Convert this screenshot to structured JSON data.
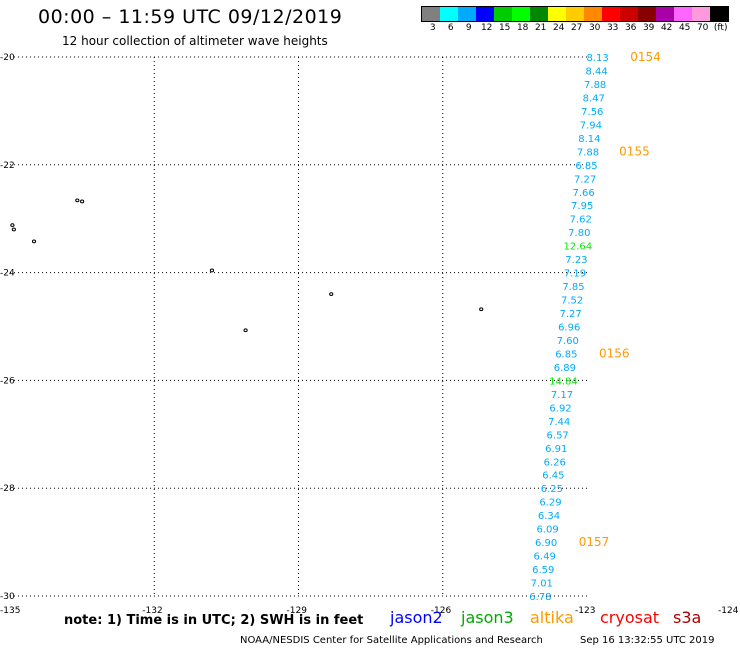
{
  "title": "00:00 – 11:59 UTC 09/12/2019",
  "subtitle": "12 hour collection of altimeter wave heights",
  "scale": {
    "colors": [
      "#808080",
      "#00ffff",
      "#00aaff",
      "#0000ff",
      "#00cc00",
      "#00ff00",
      "#008800",
      "#ffff00",
      "#ffcc00",
      "#ff8800",
      "#ff0000",
      "#cc0000",
      "#880000",
      "#aa00aa",
      "#ff66ff",
      "#ff99dd",
      "#000000"
    ],
    "labels": [
      "3",
      "6",
      "9",
      "12",
      "15",
      "18",
      "21",
      "24",
      "27",
      "30",
      "33",
      "36",
      "39",
      "42",
      "45",
      "70",
      "(ft)"
    ]
  },
  "map": {
    "lon_range": [
      -135,
      -124
    ],
    "lat_range": [
      -30,
      -20
    ],
    "lon_ticks": [
      {
        "value": -135,
        "label": "-135"
      },
      {
        "value": -132,
        "label": "-132"
      },
      {
        "value": -129,
        "label": "-129"
      },
      {
        "value": -126,
        "label": "-126"
      },
      {
        "value": -123,
        "label": "-123"
      },
      {
        "value": -124,
        "label": "-124"
      }
    ],
    "lat_ticks": [
      {
        "value": -20,
        "label": "-20"
      },
      {
        "value": -22,
        "label": "-22"
      },
      {
        "value": -24,
        "label": "-24"
      },
      {
        "value": -26,
        "label": "-26"
      },
      {
        "value": -28,
        "label": "-28"
      },
      {
        "value": -30,
        "label": "-30"
      }
    ],
    "islands": [
      {
        "lon": -133.6,
        "lat": -22.66
      },
      {
        "lon": -133.5,
        "lat": -22.68
      },
      {
        "lon": -134.95,
        "lat": -23.12
      },
      {
        "lon": -134.92,
        "lat": -23.2
      },
      {
        "lon": -134.5,
        "lat": -23.42
      },
      {
        "lon": -130.8,
        "lat": -23.96
      },
      {
        "lon": -130.1,
        "lat": -25.07
      },
      {
        "lon": -128.32,
        "lat": -24.4
      },
      {
        "lon": -125.2,
        "lat": -24.68
      }
    ],
    "observations": [
      {
        "lon": -122.78,
        "lat": -20.0,
        "swh": "8.13",
        "color": "#00aaff"
      },
      {
        "lon": -122.8,
        "lat": -20.25,
        "swh": "8.44",
        "color": "#00aaff"
      },
      {
        "lon": -122.83,
        "lat": -20.5,
        "swh": "7.88",
        "color": "#00aaff"
      },
      {
        "lon": -122.86,
        "lat": -20.75,
        "swh": "8.47",
        "color": "#00aaff"
      },
      {
        "lon": -122.89,
        "lat": -21.0,
        "swh": "7.56",
        "color": "#00aaff"
      },
      {
        "lon": -122.92,
        "lat": -21.25,
        "swh": "7.94",
        "color": "#00aaff"
      },
      {
        "lon": -122.95,
        "lat": -21.5,
        "swh": "8.14",
        "color": "#00aaff"
      },
      {
        "lon": -122.98,
        "lat": -21.75,
        "swh": "7.88",
        "color": "#00aaff"
      },
      {
        "lon": -123.01,
        "lat": -22.0,
        "swh": "6.85",
        "color": "#00aaff"
      },
      {
        "lon": -123.04,
        "lat": -22.25,
        "swh": "7.27",
        "color": "#00aaff"
      },
      {
        "lon": -123.07,
        "lat": -22.5,
        "swh": "7.66",
        "color": "#00aaff"
      },
      {
        "lon": -123.1,
        "lat": -22.75,
        "swh": "7.95",
        "color": "#00aaff"
      },
      {
        "lon": -123.13,
        "lat": -23.0,
        "swh": "7.62",
        "color": "#00aaff"
      },
      {
        "lon": -123.16,
        "lat": -23.25,
        "swh": "7.80",
        "color": "#00aaff"
      },
      {
        "lon": -123.19,
        "lat": -23.5,
        "swh": "12.64",
        "color": "#00ee00"
      },
      {
        "lon": -123.22,
        "lat": -23.75,
        "swh": "7.23",
        "color": "#00aaff"
      },
      {
        "lon": -123.25,
        "lat": -24.0,
        "swh": "7.19",
        "color": "#00aaff"
      },
      {
        "lon": -123.28,
        "lat": -24.25,
        "swh": "7.85",
        "color": "#00aaff"
      },
      {
        "lon": -123.31,
        "lat": -24.5,
        "swh": "7.52",
        "color": "#00aaff"
      },
      {
        "lon": -123.34,
        "lat": -24.75,
        "swh": "7.27",
        "color": "#00aaff"
      },
      {
        "lon": -123.37,
        "lat": -25.0,
        "swh": "6.96",
        "color": "#00aaff"
      },
      {
        "lon": -123.4,
        "lat": -25.25,
        "swh": "7.60",
        "color": "#00aaff"
      },
      {
        "lon": -123.43,
        "lat": -25.5,
        "swh": "6.85",
        "color": "#00aaff"
      },
      {
        "lon": -123.46,
        "lat": -25.75,
        "swh": "6.89",
        "color": "#00aaff"
      },
      {
        "lon": -123.49,
        "lat": -26.0,
        "swh": "14.84",
        "color": "#00ee00"
      },
      {
        "lon": -123.52,
        "lat": -26.25,
        "swh": "7.17",
        "color": "#00aaff"
      },
      {
        "lon": -123.55,
        "lat": -26.5,
        "swh": "6.92",
        "color": "#00aaff"
      },
      {
        "lon": -123.58,
        "lat": -26.75,
        "swh": "7.44",
        "color": "#00aaff"
      },
      {
        "lon": -123.61,
        "lat": -27.0,
        "swh": "6.57",
        "color": "#00aaff"
      },
      {
        "lon": -123.64,
        "lat": -27.25,
        "swh": "6.91",
        "color": "#00aaff"
      },
      {
        "lon": -123.67,
        "lat": -27.5,
        "swh": "6.26",
        "color": "#00aaff"
      },
      {
        "lon": -123.7,
        "lat": -27.75,
        "swh": "6.45",
        "color": "#00aaff"
      },
      {
        "lon": -123.73,
        "lat": -28.0,
        "swh": "6.25",
        "color": "#00aaff"
      },
      {
        "lon": -123.76,
        "lat": -28.25,
        "swh": "6.29",
        "color": "#00aaff"
      },
      {
        "lon": -123.79,
        "lat": -28.5,
        "swh": "6.34",
        "color": "#00aaff"
      },
      {
        "lon": -123.82,
        "lat": -28.75,
        "swh": "6.09",
        "color": "#00aaff"
      },
      {
        "lon": -123.85,
        "lat": -29.0,
        "swh": "6.90",
        "color": "#00aaff"
      },
      {
        "lon": -123.88,
        "lat": -29.25,
        "swh": "6.49",
        "color": "#00aaff"
      },
      {
        "lon": -123.91,
        "lat": -29.5,
        "swh": "6.59",
        "color": "#00aaff"
      },
      {
        "lon": -123.94,
        "lat": -29.75,
        "swh": "7.01",
        "color": "#00aaff"
      },
      {
        "lon": -123.97,
        "lat": -30.0,
        "swh": "6.78",
        "color": "#00aaff"
      }
    ],
    "pass_times": [
      {
        "lon": -122.6,
        "lat": -20.0,
        "label": "0154"
      },
      {
        "lon": -122.83,
        "lat": -21.75,
        "label": "0155"
      },
      {
        "lon": -123.25,
        "lat": -25.5,
        "label": "0156"
      },
      {
        "lon": -123.67,
        "lat": -29.0,
        "label": "0157"
      }
    ]
  },
  "note": "note: 1) Time is in UTC; 2) SWH is in feet",
  "satellites": [
    {
      "name": "jason2",
      "color": "#0000ff"
    },
    {
      "name": "jason3",
      "color": "#00aa00"
    },
    {
      "name": "altika",
      "color": "#ff9900"
    },
    {
      "name": "cryosat",
      "color": "#ff0000"
    },
    {
      "name": "s3a",
      "color": "#aa0000"
    }
  ],
  "credit": "NOAA/NESDIS Center for Satellite Applications and Research",
  "timestamp": "Sep 16 13:32:55 UTC 2019"
}
